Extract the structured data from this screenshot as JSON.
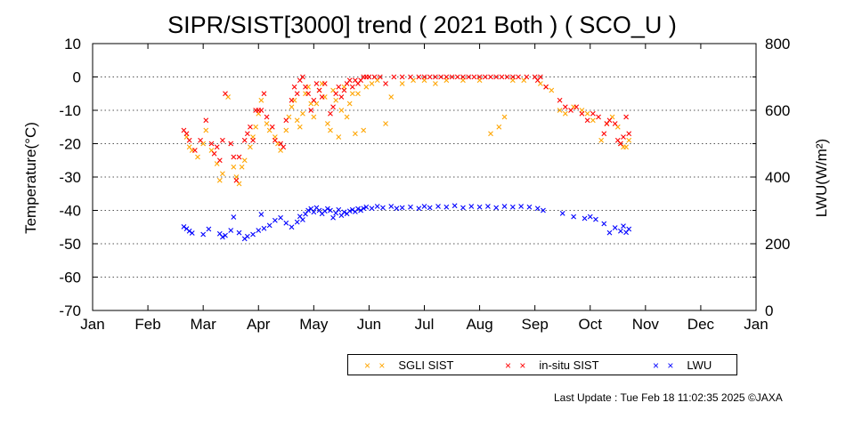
{
  "chart_data": {
    "type": "scatter",
    "title": "SIPR/SIST[3000] trend ( 2021 Both ) ( SCO_U )",
    "xlabel": "",
    "ylabel": "Temperature(°C)",
    "y2label": "LWU(W/m²)",
    "x_ticks": [
      "Jan",
      "Feb",
      "Mar",
      "Apr",
      "May",
      "Jun",
      "Jul",
      "Aug",
      "Sep",
      "Oct",
      "Nov",
      "Dec",
      "Jan"
    ],
    "xlim": [
      0,
      12
    ],
    "ylim": [
      -70,
      10
    ],
    "y_ticks": [
      10,
      0,
      -10,
      -20,
      -30,
      -40,
      -50,
      -60,
      -70
    ],
    "y2lim": [
      0,
      800
    ],
    "y2_ticks": [
      800,
      600,
      400,
      200,
      0
    ],
    "grid": "horizontal dotted",
    "colors": {
      "sgli": "#ffa500",
      "insitu": "#ff0000",
      "lwu": "#0000ff"
    },
    "series": [
      {
        "name": "SGLI SIST",
        "axis": "left",
        "points": [
          [
            1.7,
            -18
          ],
          [
            1.75,
            -21
          ],
          [
            1.8,
            -22
          ],
          [
            1.9,
            -24
          ],
          [
            2.0,
            -20
          ],
          [
            2.05,
            -16
          ],
          [
            2.15,
            -22
          ],
          [
            2.25,
            -26
          ],
          [
            2.3,
            -31
          ],
          [
            2.35,
            -29
          ],
          [
            2.45,
            -6
          ],
          [
            2.55,
            -27
          ],
          [
            2.6,
            -30
          ],
          [
            2.65,
            -32
          ],
          [
            2.7,
            -27
          ],
          [
            2.75,
            -25
          ],
          [
            2.85,
            -21
          ],
          [
            2.9,
            -18
          ],
          [
            2.95,
            -15
          ],
          [
            3.0,
            -11
          ],
          [
            3.05,
            -7
          ],
          [
            3.15,
            -14
          ],
          [
            3.2,
            -16
          ],
          [
            3.3,
            -18
          ],
          [
            3.35,
            -20
          ],
          [
            3.4,
            -22
          ],
          [
            3.5,
            -16
          ],
          [
            3.55,
            -12
          ],
          [
            3.6,
            -9
          ],
          [
            3.65,
            -7
          ],
          [
            3.7,
            -13
          ],
          [
            3.75,
            -15
          ],
          [
            3.8,
            -11
          ],
          [
            3.85,
            -5
          ],
          [
            3.9,
            -3
          ],
          [
            3.95,
            -8
          ],
          [
            4.0,
            -12
          ],
          [
            4.05,
            -8
          ],
          [
            4.1,
            -4
          ],
          [
            4.15,
            -2
          ],
          [
            4.2,
            -6
          ],
          [
            4.25,
            -14
          ],
          [
            4.3,
            -16
          ],
          [
            4.35,
            -4
          ],
          [
            4.4,
            -7
          ],
          [
            4.45,
            -18
          ],
          [
            4.5,
            -10
          ],
          [
            4.55,
            -3
          ],
          [
            4.6,
            -12
          ],
          [
            4.65,
            -8
          ],
          [
            4.7,
            -5
          ],
          [
            4.75,
            -17
          ],
          [
            4.8,
            -5
          ],
          [
            4.9,
            -16
          ],
          [
            4.95,
            -3
          ],
          [
            5.05,
            -2
          ],
          [
            5.15,
            -1
          ],
          [
            5.3,
            -14
          ],
          [
            5.4,
            -6
          ],
          [
            5.6,
            -2
          ],
          [
            5.8,
            -1
          ],
          [
            6.0,
            -1
          ],
          [
            6.2,
            -2
          ],
          [
            6.4,
            -1
          ],
          [
            6.7,
            -1
          ],
          [
            7.0,
            -1
          ],
          [
            7.2,
            -17
          ],
          [
            7.35,
            -15
          ],
          [
            7.45,
            -12
          ],
          [
            7.6,
            -1
          ],
          [
            7.8,
            -1
          ],
          [
            8.1,
            -2
          ],
          [
            8.2,
            -3
          ],
          [
            8.3,
            -4
          ],
          [
            8.45,
            -10
          ],
          [
            8.55,
            -11
          ],
          [
            8.7,
            -9
          ],
          [
            8.85,
            -10
          ],
          [
            8.95,
            -11
          ],
          [
            9.05,
            -13
          ],
          [
            9.2,
            -19
          ],
          [
            9.3,
            -14
          ],
          [
            9.4,
            -12
          ],
          [
            9.5,
            -15
          ],
          [
            9.55,
            -20
          ],
          [
            9.6,
            -21
          ],
          [
            9.65,
            -21
          ],
          [
            9.7,
            -19
          ]
        ]
      },
      {
        "name": "in-situ SIST",
        "axis": "left",
        "points": [
          [
            1.65,
            -16
          ],
          [
            1.7,
            -17
          ],
          [
            1.75,
            -19
          ],
          [
            1.85,
            -22
          ],
          [
            1.95,
            -19
          ],
          [
            2.05,
            -13
          ],
          [
            2.15,
            -20
          ],
          [
            2.2,
            -23
          ],
          [
            2.25,
            -21
          ],
          [
            2.3,
            -25
          ],
          [
            2.35,
            -19
          ],
          [
            2.4,
            -5
          ],
          [
            2.5,
            -20
          ],
          [
            2.55,
            -24
          ],
          [
            2.6,
            -31
          ],
          [
            2.65,
            -24
          ],
          [
            2.75,
            -19
          ],
          [
            2.8,
            -17
          ],
          [
            2.85,
            -15
          ],
          [
            2.9,
            -19
          ],
          [
            2.95,
            -10
          ],
          [
            3.0,
            -10
          ],
          [
            3.05,
            -10
          ],
          [
            3.1,
            -5
          ],
          [
            3.15,
            -12
          ],
          [
            3.25,
            -15
          ],
          [
            3.3,
            -19
          ],
          [
            3.4,
            -20
          ],
          [
            3.45,
            -21
          ],
          [
            3.5,
            -13
          ],
          [
            3.6,
            -7
          ],
          [
            3.65,
            -3
          ],
          [
            3.7,
            -5
          ],
          [
            3.75,
            -1
          ],
          [
            3.8,
            0
          ],
          [
            3.85,
            -3
          ],
          [
            3.9,
            -5
          ],
          [
            3.95,
            -10
          ],
          [
            4.0,
            -7
          ],
          [
            4.05,
            -2
          ],
          [
            4.1,
            -4
          ],
          [
            4.15,
            -6
          ],
          [
            4.2,
            -2
          ],
          [
            4.3,
            -11
          ],
          [
            4.35,
            -9
          ],
          [
            4.4,
            -5
          ],
          [
            4.45,
            -3
          ],
          [
            4.5,
            -6
          ],
          [
            4.55,
            -4
          ],
          [
            4.6,
            -2
          ],
          [
            4.65,
            -1
          ],
          [
            4.7,
            -3
          ],
          [
            4.75,
            -1
          ],
          [
            4.8,
            -2
          ],
          [
            4.85,
            -1
          ],
          [
            4.9,
            0
          ],
          [
            4.95,
            0
          ],
          [
            5.0,
            0
          ],
          [
            5.1,
            0
          ],
          [
            5.2,
            0
          ],
          [
            5.3,
            -2
          ],
          [
            5.45,
            0
          ],
          [
            5.6,
            0
          ],
          [
            5.75,
            0
          ],
          [
            5.9,
            0
          ],
          [
            6.0,
            0
          ],
          [
            6.1,
            0
          ],
          [
            6.2,
            0
          ],
          [
            6.3,
            0
          ],
          [
            6.4,
            0
          ],
          [
            6.5,
            0
          ],
          [
            6.6,
            0
          ],
          [
            6.7,
            0
          ],
          [
            6.8,
            0
          ],
          [
            6.9,
            0
          ],
          [
            7.0,
            0
          ],
          [
            7.1,
            0
          ],
          [
            7.2,
            0
          ],
          [
            7.3,
            0
          ],
          [
            7.4,
            0
          ],
          [
            7.5,
            0
          ],
          [
            7.6,
            0
          ],
          [
            7.7,
            0
          ],
          [
            7.85,
            0
          ],
          [
            8.0,
            0
          ],
          [
            8.05,
            -1
          ],
          [
            8.1,
            0
          ],
          [
            8.2,
            -3
          ],
          [
            8.45,
            -7
          ],
          [
            8.55,
            -9
          ],
          [
            8.65,
            -10
          ],
          [
            8.75,
            -9
          ],
          [
            8.85,
            -11
          ],
          [
            8.95,
            -13
          ],
          [
            9.05,
            -11
          ],
          [
            9.15,
            -12
          ],
          [
            9.25,
            -17
          ],
          [
            9.3,
            -14
          ],
          [
            9.35,
            -13
          ],
          [
            9.45,
            -14
          ],
          [
            9.5,
            -19
          ],
          [
            9.55,
            -20
          ],
          [
            9.6,
            -18
          ],
          [
            9.65,
            -12
          ],
          [
            9.7,
            -17
          ]
        ]
      },
      {
        "name": "LWU",
        "axis": "right",
        "points": [
          [
            1.65,
            251
          ],
          [
            1.7,
            245
          ],
          [
            1.75,
            238
          ],
          [
            1.8,
            232
          ],
          [
            2.0,
            228
          ],
          [
            2.1,
            244
          ],
          [
            2.3,
            230
          ],
          [
            2.35,
            220
          ],
          [
            2.4,
            225
          ],
          [
            2.5,
            240
          ],
          [
            2.55,
            280
          ],
          [
            2.65,
            233
          ],
          [
            2.75,
            215
          ],
          [
            2.8,
            222
          ],
          [
            2.9,
            228
          ],
          [
            3.0,
            240
          ],
          [
            3.05,
            288
          ],
          [
            3.1,
            246
          ],
          [
            3.2,
            255
          ],
          [
            3.3,
            270
          ],
          [
            3.4,
            278
          ],
          [
            3.5,
            262
          ],
          [
            3.6,
            250
          ],
          [
            3.7,
            265
          ],
          [
            3.75,
            282
          ],
          [
            3.8,
            272
          ],
          [
            3.85,
            289
          ],
          [
            3.9,
            300
          ],
          [
            3.95,
            305
          ],
          [
            4.0,
            295
          ],
          [
            4.05,
            308
          ],
          [
            4.1,
            300
          ],
          [
            4.15,
            290
          ],
          [
            4.2,
            298
          ],
          [
            4.25,
            305
          ],
          [
            4.3,
            300
          ],
          [
            4.35,
            278
          ],
          [
            4.4,
            292
          ],
          [
            4.45,
            302
          ],
          [
            4.5,
            285
          ],
          [
            4.55,
            295
          ],
          [
            4.6,
            290
          ],
          [
            4.65,
            298
          ],
          [
            4.7,
            302
          ],
          [
            4.75,
            296
          ],
          [
            4.8,
            305
          ],
          [
            4.85,
            300
          ],
          [
            4.9,
            306
          ],
          [
            4.95,
            310
          ],
          [
            5.05,
            306
          ],
          [
            5.15,
            312
          ],
          [
            5.25,
            308
          ],
          [
            5.4,
            312
          ],
          [
            5.5,
            306
          ],
          [
            5.6,
            308
          ],
          [
            5.75,
            310
          ],
          [
            5.9,
            306
          ],
          [
            6.0,
            312
          ],
          [
            6.1,
            308
          ],
          [
            6.25,
            312
          ],
          [
            6.4,
            310
          ],
          [
            6.55,
            314
          ],
          [
            6.7,
            308
          ],
          [
            6.85,
            312
          ],
          [
            7.0,
            310
          ],
          [
            7.15,
            312
          ],
          [
            7.3,
            308
          ],
          [
            7.45,
            312
          ],
          [
            7.6,
            310
          ],
          [
            7.75,
            312
          ],
          [
            7.9,
            310
          ],
          [
            8.05,
            306
          ],
          [
            8.15,
            300
          ],
          [
            8.5,
            291
          ],
          [
            8.7,
            281
          ],
          [
            8.9,
            276
          ],
          [
            9.0,
            281
          ],
          [
            9.1,
            273
          ],
          [
            9.25,
            260
          ],
          [
            9.35,
            233
          ],
          [
            9.45,
            248
          ],
          [
            9.55,
            238
          ],
          [
            9.6,
            253
          ],
          [
            9.65,
            234
          ],
          [
            9.7,
            244
          ]
        ]
      }
    ]
  },
  "legend": {
    "sgli_label": "SGLI SIST",
    "insitu_label": "in-situ SIST",
    "lwu_label": "LWU",
    "marker": "× ×"
  },
  "footer": "Last Update : Tue Feb 18 11:02:35 2025  ©JAXA"
}
